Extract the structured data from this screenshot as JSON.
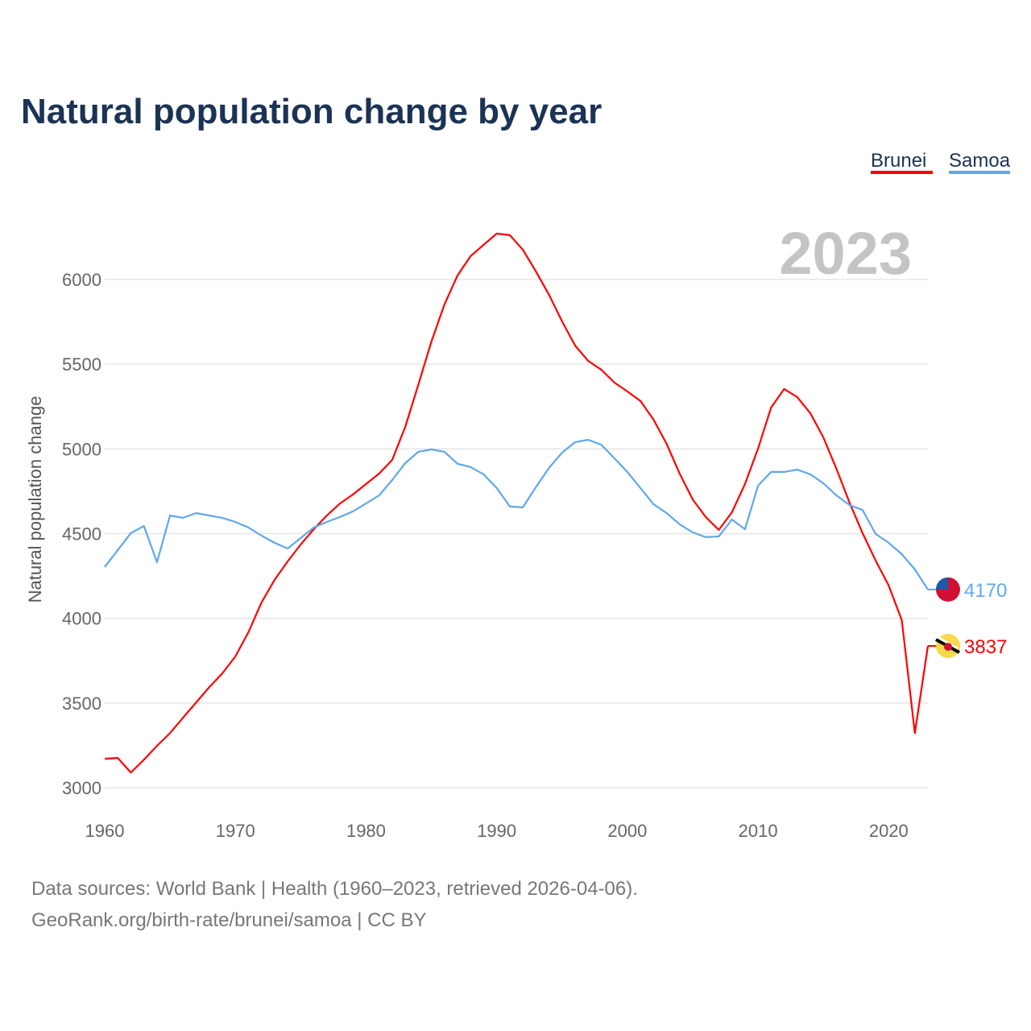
{
  "chart_data": {
    "type": "line",
    "title": "Natural population change by year",
    "xlabel": "",
    "ylabel": "Natural population change",
    "xlim": [
      1960,
      2023
    ],
    "ylim": [
      3000,
      6300
    ],
    "yticks": [
      3000,
      3500,
      4000,
      4500,
      5000,
      5500,
      6000
    ],
    "xticks": [
      1960,
      1970,
      1980,
      1990,
      2000,
      2010,
      2020
    ],
    "grid": true,
    "legend_position": "top-right",
    "current_year_label": "2023",
    "x": [
      1960,
      1961,
      1962,
      1963,
      1964,
      1965,
      1966,
      1967,
      1968,
      1969,
      1970,
      1971,
      1972,
      1973,
      1974,
      1975,
      1976,
      1977,
      1978,
      1979,
      1980,
      1981,
      1982,
      1983,
      1984,
      1985,
      1986,
      1987,
      1988,
      1989,
      1990,
      1991,
      1992,
      1993,
      1994,
      1995,
      1996,
      1997,
      1998,
      1999,
      2000,
      2001,
      2002,
      2003,
      2004,
      2005,
      2006,
      2007,
      2008,
      2009,
      2010,
      2011,
      2012,
      2013,
      2014,
      2015,
      2016,
      2017,
      2018,
      2019,
      2020,
      2021,
      2022,
      2023
    ],
    "series": [
      {
        "name": "Brunei",
        "color": "#ff0000",
        "end_label": "3837",
        "flag": "brunei-flag",
        "values": [
          3171,
          3176,
          3090,
          3166,
          3247,
          3323,
          3414,
          3504,
          3594,
          3675,
          3775,
          3918,
          4094,
          4227,
          4336,
          4436,
          4526,
          4607,
          4678,
          4731,
          4793,
          4854,
          4935,
          5130,
          5378,
          5634,
          5853,
          6024,
          6138,
          6205,
          6271,
          6262,
          6176,
          6048,
          5910,
          5753,
          5610,
          5520,
          5468,
          5392,
          5339,
          5283,
          5173,
          5030,
          4854,
          4702,
          4598,
          4522,
          4626,
          4793,
          5002,
          5244,
          5354,
          5306,
          5211,
          5068,
          4883,
          4683,
          4503,
          4341,
          4194,
          3989,
          3323,
          3837
        ]
      },
      {
        "name": "Samoa",
        "color": "#5fa8eb",
        "end_label": "4170",
        "flag": "samoa-flag",
        "values": [
          4303,
          4403,
          4503,
          4545,
          4331,
          4607,
          4593,
          4621,
          4607,
          4593,
          4569,
          4536,
          4488,
          4446,
          4412,
          4474,
          4536,
          4569,
          4598,
          4631,
          4678,
          4726,
          4816,
          4916,
          4983,
          4997,
          4983,
          4912,
          4893,
          4850,
          4769,
          4660,
          4655,
          4774,
          4888,
          4978,
          5040,
          5054,
          5025,
          4945,
          4864,
          4769,
          4674,
          4621,
          4555,
          4507,
          4479,
          4484,
          4583,
          4526,
          4783,
          4864,
          4864,
          4878,
          4850,
          4797,
          4726,
          4669,
          4640,
          4498,
          4446,
          4379,
          4289,
          4170
        ]
      }
    ]
  },
  "footer": {
    "line1": "Data sources: World Bank | Health (1960–2023, retrieved 2026-04-06).",
    "line2": "GeoRank.org/birth-rate/brunei/samoa | CC BY"
  }
}
